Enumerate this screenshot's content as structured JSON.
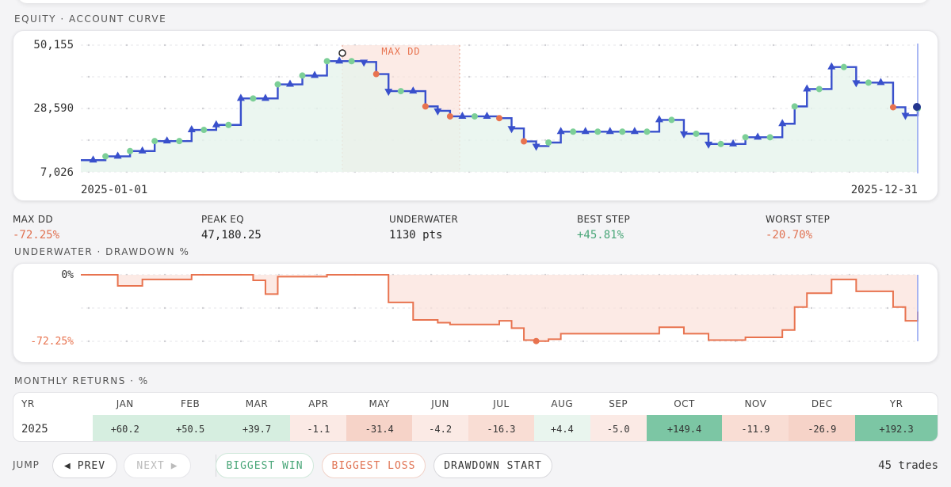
{
  "equity": {
    "title": "EQUITY · ACCOUNT CURVE",
    "y_ticks": [
      "50,155",
      "28,590",
      "7,026"
    ],
    "x_start": "2025-01-01",
    "x_end": "2025-12-31",
    "max_dd_label": "MAX DD"
  },
  "stats": [
    {
      "label": "MAX DD",
      "value": "-72.25%",
      "tone": "neg"
    },
    {
      "label": "PEAK EQ",
      "value": "47,180.25",
      "tone": "dark"
    },
    {
      "label": "UNDERWATER",
      "value": "1130 pts",
      "tone": "dark"
    },
    {
      "label": "BEST STEP",
      "value": "+45.81%",
      "tone": "pos"
    },
    {
      "label": "WORST STEP",
      "value": "-20.70%",
      "tone": "neg"
    }
  ],
  "underwater": {
    "title": "UNDERWATER · DRAWDOWN %",
    "y_top": "0%",
    "y_bottom": "-72.25%"
  },
  "monthly": {
    "title": "MONTHLY RETURNS · %",
    "yr_header": "YR",
    "months": [
      "JAN",
      "FEB",
      "MAR",
      "APR",
      "MAY",
      "JUN",
      "JUL",
      "AUG",
      "SEP",
      "OCT",
      "NOV",
      "DEC"
    ],
    "year": "2025",
    "values": [
      "+60.2",
      "+50.5",
      "+39.7",
      "-1.1",
      "-31.4",
      "-4.2",
      "-16.3",
      "+4.4",
      "-5.0",
      "+149.4",
      "-11.9",
      "-26.9"
    ],
    "total_header": "YR",
    "total": "+192.3"
  },
  "footer": {
    "jump_label": "JUMP",
    "prev": "PREV",
    "next": "NEXT",
    "biggest_win": "BIGGEST WIN",
    "biggest_loss": "BIGGEST LOSS",
    "drawdown_start": "DRAWDOWN START",
    "trades": "45 trades"
  },
  "colors": {
    "line": "#3950cc",
    "drawdown": "#e8734f",
    "win": "#7ccf97",
    "loss": "#e8734f",
    "dd_shade": "#fbe3dc"
  },
  "chart_data": [
    {
      "type": "line",
      "title": "EQUITY · ACCOUNT CURVE",
      "x_range": [
        "2025-01-01",
        "2025-12-31"
      ],
      "ylim": [
        7026,
        50155
      ],
      "step": true,
      "series": [
        {
          "values": [
            11000,
            11000,
            12300,
            12300,
            14100,
            14100,
            17500,
            17500,
            17500,
            21300,
            21300,
            23000,
            23000,
            32000,
            32000,
            32000,
            36800,
            36800,
            39800,
            39800,
            44700,
            44700,
            44700,
            44400,
            40300,
            34500,
            34500,
            34500,
            29300,
            27800,
            25900,
            25900,
            25900,
            25900,
            25300,
            21800,
            17400,
            15800,
            17000,
            20700,
            20700,
            20700,
            20700,
            20700,
            20700,
            20700,
            20700,
            24700,
            24700,
            20000,
            20000,
            16500,
            16500,
            16500,
            18800,
            18800,
            18800,
            23400,
            29300,
            35200,
            35200,
            42700,
            42700,
            37400,
            37400,
            37400,
            29000,
            26300,
            28590
          ]
        }
      ]
    },
    {
      "type": "area",
      "title": "UNDERWATER · DRAWDOWN %",
      "ylim": [
        -72.25,
        0
      ],
      "series": [
        {
          "values": [
            0,
            0,
            0,
            -12,
            -12,
            -5,
            -5,
            -5,
            -5,
            0,
            0,
            0,
            0,
            0,
            -6,
            -21,
            -2,
            -2,
            -2,
            -2,
            0,
            0,
            0,
            0,
            0,
            -30,
            -30,
            -49,
            -49,
            -52,
            -54,
            -54,
            -54,
            -54,
            -50,
            -58,
            -71,
            -72,
            -70,
            -64,
            -64,
            -64,
            -64,
            -64,
            -64,
            -64,
            -64,
            -57,
            -57,
            -64,
            -64,
            -71,
            -71,
            -71,
            -68,
            -68,
            -68,
            -60,
            -35,
            -20,
            -20,
            -5,
            -5,
            -18,
            -18,
            -18,
            -35,
            -50,
            -40
          ]
        }
      ]
    }
  ]
}
